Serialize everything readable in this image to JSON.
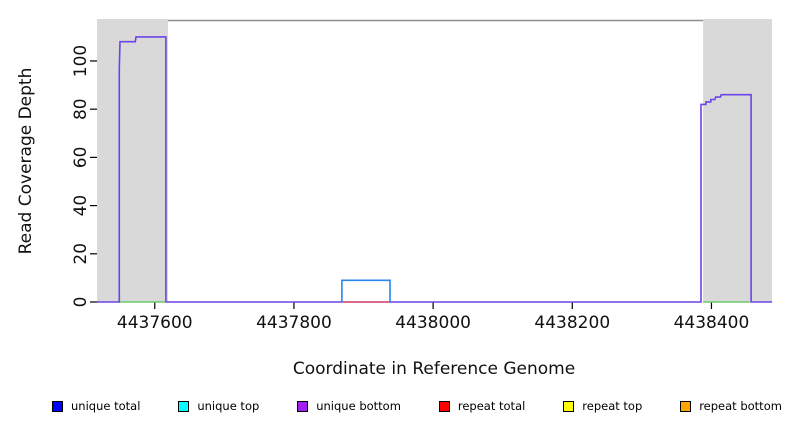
{
  "chart_data": {
    "type": "line",
    "xlabel": "Coordinate in Reference Genome",
    "ylabel": "Read Coverage Depth",
    "xlim": [
      4437517,
      4438487
    ],
    "ylim": [
      0,
      117
    ],
    "x_ticks": [
      4437600,
      4437800,
      4438000,
      4438200,
      4438400
    ],
    "y_ticks": [
      0,
      20,
      40,
      60,
      80,
      100
    ],
    "grid": false,
    "legend_position": "bottom",
    "region_color": "#d9d9d9",
    "top_border_color": "#8e8e8e",
    "axis_color": "#000000",
    "highlight_regions": [
      {
        "x0": 4437517,
        "x1": 4437619
      },
      {
        "x0": 4438388,
        "x1": 4438487
      }
    ],
    "series": [
      {
        "name": "unique bottom",
        "legend_color": "#a020f0",
        "rendered_color": "#6c44e6",
        "width": 1.6,
        "points": [
          [
            4437517,
            0
          ],
          [
            4437549,
            0
          ],
          [
            4437549,
            97
          ],
          [
            4437550,
            108
          ],
          [
            4437572,
            108
          ],
          [
            4437573,
            110
          ],
          [
            4437616,
            110
          ],
          [
            4437616,
            0
          ],
          [
            4438385,
            0
          ],
          [
            4438385,
            82
          ],
          [
            4438392,
            82
          ],
          [
            4438392,
            83
          ],
          [
            4438399,
            83
          ],
          [
            4438399,
            84
          ],
          [
            4438405,
            84
          ],
          [
            4438406,
            85
          ],
          [
            4438413,
            85
          ],
          [
            4438414,
            86
          ],
          [
            4438457,
            86
          ],
          [
            4438457,
            0
          ],
          [
            4438487,
            0
          ]
        ]
      },
      {
        "name": "top-strand zero coverage (left region)",
        "legend_color": "#00ffff",
        "rendered_color": "#6ec96e",
        "width": 1.6,
        "points": [
          [
            4437550,
            0
          ],
          [
            4437615,
            0
          ]
        ]
      },
      {
        "name": "top-strand zero coverage (right region)",
        "legend_color": "#00ffff",
        "rendered_color": "#6ec96e",
        "width": 1.6,
        "points": [
          [
            4438388,
            0
          ],
          [
            4438455,
            0
          ]
        ]
      },
      {
        "name": "repeat total",
        "legend_color": "#ff0000",
        "rendered_color": "#e25b66",
        "width": 1.4,
        "points": [
          [
            4437869,
            0
          ],
          [
            4437938,
            0
          ]
        ]
      },
      {
        "name": "unique total / unique top box",
        "legend_color": "#0000ff",
        "rendered_color": "#2a85ec",
        "width": 1.6,
        "points": [
          [
            4437869,
            0
          ],
          [
            4437869,
            9
          ],
          [
            4437938,
            9
          ],
          [
            4437938,
            0
          ]
        ]
      }
    ]
  },
  "legend": {
    "items": [
      {
        "label": "unique total",
        "color": "#0000ff"
      },
      {
        "label": "unique top",
        "color": "#00ffff"
      },
      {
        "label": "unique bottom",
        "color": "#a020f0"
      },
      {
        "label": "repeat total",
        "color": "#ff0000"
      },
      {
        "label": "repeat top",
        "color": "#ffff00"
      },
      {
        "label": "repeat bottom",
        "color": "#ffa500"
      }
    ]
  }
}
